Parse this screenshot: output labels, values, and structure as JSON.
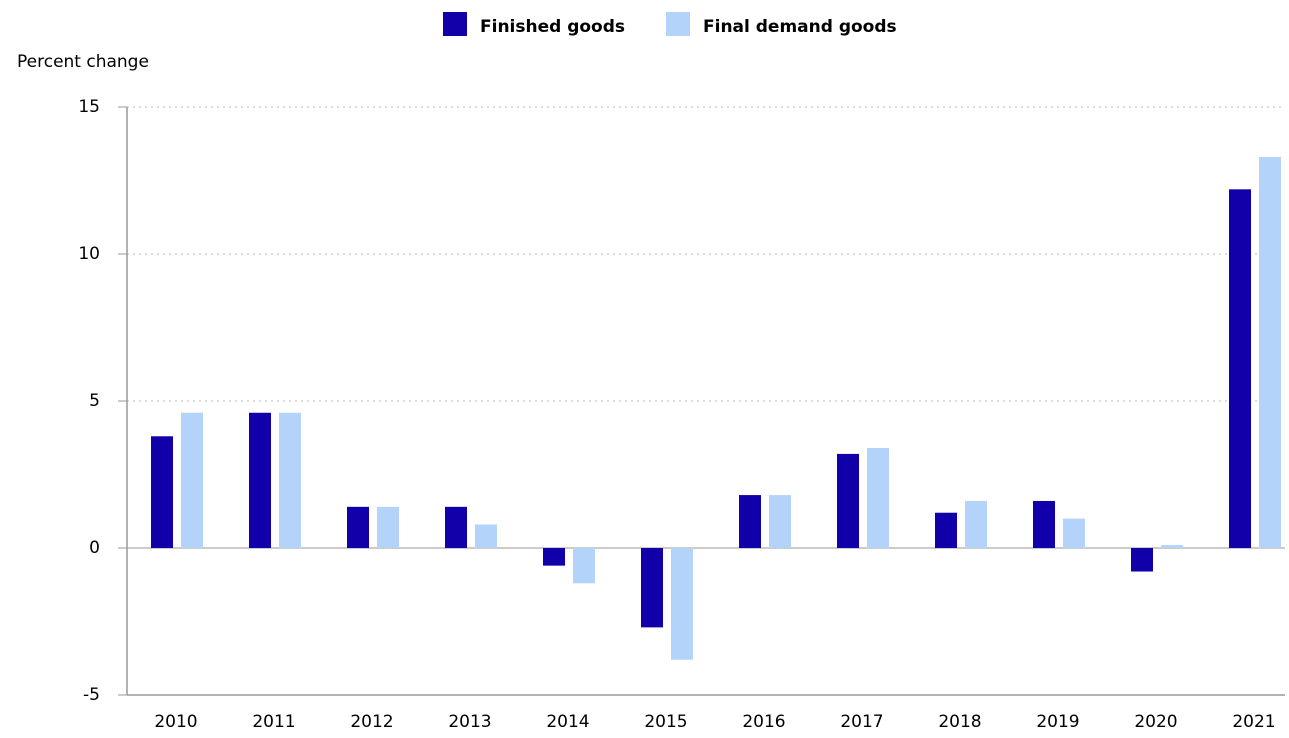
{
  "chart_data": {
    "type": "bar",
    "y_label": "Percent change",
    "categories": [
      "2010",
      "2011",
      "2012",
      "2013",
      "2014",
      "2015",
      "2016",
      "2017",
      "2018",
      "2019",
      "2020",
      "2021"
    ],
    "series": [
      {
        "name": "Finished goods",
        "color": "#1100aa",
        "values": [
          3.8,
          4.6,
          1.4,
          1.4,
          -0.6,
          -2.7,
          1.8,
          3.2,
          1.2,
          1.6,
          -0.8,
          12.2
        ]
      },
      {
        "name": "Final demand goods",
        "color": "#b3d3fb",
        "values": [
          4.6,
          4.6,
          1.4,
          0.8,
          -1.2,
          -3.8,
          1.8,
          3.4,
          1.6,
          1.0,
          0.1,
          13.3
        ]
      }
    ],
    "ylim": [
      -5,
      15
    ],
    "yticks": [
      15,
      10,
      5,
      0,
      -5
    ],
    "grid": true
  }
}
